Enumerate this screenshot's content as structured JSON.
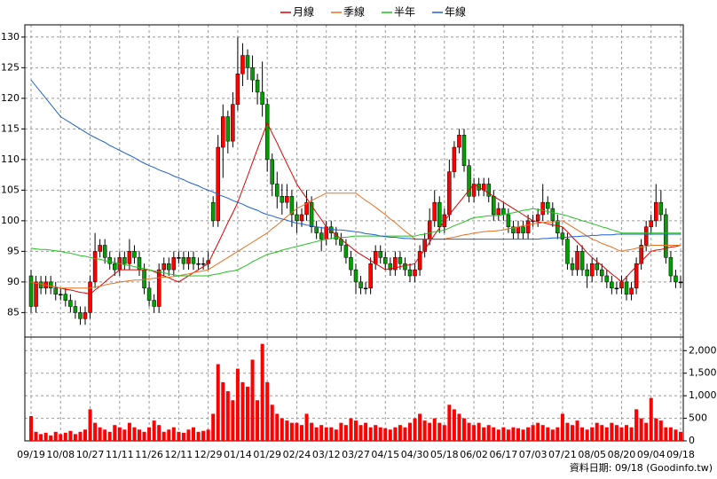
{
  "chart_data": {
    "type": "candlestick",
    "categories": [
      "09/19",
      null,
      null,
      null,
      null,
      null,
      "10/08",
      null,
      null,
      null,
      null,
      null,
      "10/27",
      null,
      null,
      null,
      null,
      null,
      "11/11",
      null,
      null,
      null,
      null,
      null,
      "11/26",
      null,
      null,
      null,
      null,
      null,
      "12/11",
      null,
      null,
      null,
      null,
      null,
      "12/29",
      null,
      null,
      null,
      null,
      null,
      "01/14",
      null,
      null,
      null,
      null,
      null,
      "01/29",
      null,
      null,
      null,
      null,
      null,
      "02/24",
      null,
      null,
      null,
      null,
      null,
      "03/12",
      null,
      null,
      null,
      null,
      null,
      "03/27",
      null,
      null,
      null,
      null,
      null,
      "04/15",
      null,
      null,
      null,
      null,
      null,
      "04/30",
      null,
      null,
      null,
      null,
      null,
      "05/18",
      null,
      null,
      null,
      null,
      null,
      "06/02",
      null,
      null,
      null,
      null,
      null,
      "06/17",
      null,
      null,
      null,
      null,
      null,
      "07/03",
      null,
      null,
      null,
      null,
      null,
      "07/21",
      null,
      null,
      null,
      null,
      null,
      "08/05",
      null,
      null,
      null,
      null,
      null,
      "08/20",
      null,
      null,
      null,
      null,
      null,
      "09/04",
      null,
      null,
      null,
      null,
      null,
      "09/18"
    ],
    "open": [
      91,
      86,
      90,
      89,
      90,
      89,
      88,
      88,
      87,
      86,
      85,
      84,
      85,
      90,
      95,
      96,
      94,
      93,
      92,
      94,
      93,
      95,
      94,
      92,
      89,
      87,
      86,
      92,
      93,
      92,
      94,
      94,
      93,
      94,
      93,
      93,
      93,
      103,
      100,
      112,
      117,
      113,
      119,
      124,
      127,
      125,
      123,
      121,
      119,
      110,
      106,
      104,
      103,
      104,
      101,
      100,
      101,
      103,
      99,
      98,
      97,
      99,
      98,
      97,
      96,
      94,
      92,
      90,
      89,
      89,
      93,
      95,
      94,
      93,
      92,
      94,
      93,
      92,
      91,
      92,
      95,
      97,
      100,
      103,
      99,
      101,
      108,
      112,
      114,
      109,
      104,
      106,
      105,
      106,
      104,
      101,
      102,
      101,
      99,
      98,
      99,
      98,
      100,
      100,
      101,
      103,
      102,
      100,
      98,
      97,
      93,
      92,
      95,
      92,
      91,
      93,
      92,
      91,
      90,
      89,
      89,
      90,
      88,
      89,
      93,
      96,
      99,
      100,
      103,
      101,
      94,
      91,
      90
    ],
    "high": [
      92,
      91,
      91,
      91,
      91,
      90,
      89,
      89,
      88,
      87,
      86,
      86,
      91,
      98,
      97,
      97,
      95,
      94,
      95,
      95,
      97,
      96,
      95,
      93,
      90,
      88,
      93,
      94,
      94,
      95,
      95,
      95,
      95,
      95,
      94,
      94,
      95,
      104,
      114,
      119,
      118,
      121,
      130,
      129,
      128,
      127,
      124,
      126,
      120,
      111,
      108,
      106,
      106,
      105,
      103,
      102,
      105,
      104,
      100,
      99,
      100,
      100,
      99,
      98,
      97,
      95,
      93,
      91,
      90,
      94,
      96,
      96,
      95,
      94,
      95,
      95,
      94,
      93,
      93,
      96,
      98,
      102,
      105,
      104,
      102,
      110,
      113,
      115,
      115,
      110,
      107,
      107,
      107,
      107,
      105,
      103,
      103,
      102,
      100,
      100,
      100,
      101,
      101,
      102,
      106,
      104,
      103,
      101,
      99,
      98,
      94,
      96,
      96,
      93,
      94,
      94,
      93,
      92,
      91,
      90,
      91,
      91,
      90,
      94,
      97,
      100,
      101,
      106,
      105,
      102,
      95,
      92,
      91
    ],
    "low": [
      85,
      85,
      88,
      88,
      88,
      87,
      87,
      86,
      85,
      84,
      83,
      83,
      84,
      89,
      94,
      93,
      92,
      91,
      91,
      92,
      92,
      93,
      91,
      88,
      86,
      85,
      85,
      91,
      91,
      91,
      93,
      92,
      92,
      92,
      92,
      92,
      92,
      99,
      99,
      107,
      111,
      112,
      118,
      122,
      123,
      121,
      119,
      117,
      108,
      104,
      102,
      101,
      102,
      99,
      98,
      99,
      100,
      98,
      97,
      95,
      96,
      97,
      96,
      95,
      93,
      91,
      88,
      88,
      88,
      88,
      92,
      93,
      92,
      91,
      91,
      92,
      91,
      90,
      90,
      91,
      94,
      96,
      99,
      98,
      98,
      100,
      107,
      111,
      108,
      103,
      103,
      104,
      104,
      103,
      100,
      100,
      100,
      98,
      97,
      97,
      97,
      97,
      99,
      99,
      100,
      101,
      99,
      97,
      96,
      92,
      91,
      91,
      91,
      89,
      90,
      91,
      90,
      89,
      88,
      88,
      88,
      87,
      87,
      88,
      92,
      95,
      98,
      99,
      100,
      93,
      90,
      89,
      89
    ],
    "close": [
      86,
      90,
      89,
      90,
      89,
      88,
      88,
      87,
      86,
      85,
      84,
      85,
      90,
      95,
      96,
      94,
      93,
      92,
      94,
      93,
      95,
      94,
      92,
      89,
      87,
      86,
      92,
      93,
      92,
      94,
      94,
      93,
      94,
      93,
      93,
      93,
      93.5,
      100,
      112,
      117,
      113,
      119,
      124,
      127,
      125,
      123,
      121,
      119,
      110,
      106,
      104,
      103,
      104,
      101,
      100,
      101,
      103,
      99,
      98,
      97,
      99,
      98,
      97,
      96,
      94,
      92,
      90,
      89,
      89,
      93,
      95,
      94,
      93,
      92,
      94,
      93,
      92,
      91,
      92,
      95,
      97,
      100,
      103,
      99,
      101,
      108,
      112,
      114,
      109,
      104,
      106,
      105,
      106,
      104,
      101,
      102,
      101,
      99,
      98,
      99,
      98,
      100,
      100,
      101,
      103,
      102,
      100,
      98,
      97,
      93,
      92,
      95,
      92,
      91,
      93,
      92,
      91,
      90,
      89,
      89,
      90,
      88,
      89,
      93,
      96,
      99,
      100,
      103,
      101,
      94,
      91,
      90,
      90
    ],
    "up_color": "#ff0000",
    "down_color": "#00a000",
    "ylim": [
      81,
      132
    ],
    "yticks": [
      85,
      90,
      95,
      100,
      105,
      110,
      115,
      120,
      125,
      130
    ],
    "grid": true,
    "legend": "top",
    "series": [
      {
        "name": "月線",
        "color": "#e00000",
        "values": [
          90,
          89.8,
          89.7,
          89.5,
          89.3,
          89.2,
          89,
          88.8,
          88.7,
          88.5,
          88.3,
          88.2,
          88,
          88.7,
          89.3,
          90,
          90.7,
          91.3,
          92,
          92,
          92,
          92,
          92,
          92,
          92,
          91.7,
          91.3,
          91,
          90.7,
          90.3,
          90,
          90.5,
          91,
          91.5,
          92,
          92.5,
          93,
          94.7,
          96.3,
          98,
          99.7,
          101.3,
          103,
          105.2,
          107.3,
          109.5,
          111.7,
          113.8,
          116,
          114.3,
          112.7,
          111,
          109.3,
          107.7,
          106,
          104.8,
          103.7,
          102.5,
          101.3,
          100.2,
          99,
          98.3,
          97.7,
          97,
          96.3,
          95.7,
          95,
          94.5,
          94,
          93.5,
          93,
          92.5,
          92,
          92.2,
          92.3,
          92.5,
          92.7,
          92.8,
          93,
          94.2,
          95.3,
          96.5,
          97.7,
          98.8,
          100,
          101,
          102,
          103,
          104,
          105,
          106,
          105.5,
          105,
          104.5,
          104,
          103.5,
          103,
          102.5,
          102,
          101.5,
          101,
          100.5,
          100,
          99.8,
          99.7,
          99.5,
          99.3,
          99.2,
          99,
          98.2,
          97.3,
          96.5,
          95.7,
          94.8,
          94,
          93.3,
          92.7,
          92,
          91.3,
          90.7,
          90,
          90.8,
          91.7,
          92.5,
          93.3,
          94.2,
          95,
          95.2,
          95.3,
          95.5,
          95.7,
          95.8,
          96
        ]
      },
      {
        "name": "季線",
        "color": "#e87020",
        "values": [
          90,
          89.8,
          89.7,
          89.5,
          89.3,
          89.2,
          89,
          89,
          89,
          89,
          89,
          89,
          89,
          89.2,
          89.3,
          89.5,
          89.7,
          89.8,
          90,
          90.1,
          90.2,
          90.3,
          90.3,
          90.4,
          90.5,
          90.6,
          90.7,
          90.8,
          90.8,
          90.9,
          91,
          91.2,
          91.3,
          91.5,
          91.7,
          91.8,
          92,
          92.5,
          93,
          93.5,
          94,
          94.5,
          95,
          95.5,
          96,
          96.5,
          97,
          97.5,
          98,
          98.7,
          99.3,
          100,
          100.7,
          101.3,
          102,
          102.4,
          102.8,
          103.3,
          103.7,
          104.1,
          104.5,
          104.5,
          104.5,
          104.5,
          104.5,
          104.5,
          104.5,
          103.9,
          103.3,
          102.8,
          102.2,
          101.6,
          101,
          100.3,
          99.7,
          99,
          98.3,
          97.7,
          97,
          97,
          97,
          97,
          97,
          97,
          97,
          97.2,
          97.3,
          97.5,
          97.7,
          97.8,
          98,
          98.1,
          98.2,
          98.3,
          98.3,
          98.4,
          98.5,
          98.7,
          98.8,
          99,
          99.2,
          99.3,
          99.5,
          99.6,
          99.7,
          99.8,
          99.8,
          99.9,
          100,
          99.5,
          99,
          98.5,
          98,
          97.5,
          97,
          96.7,
          96.3,
          96,
          95.7,
          95.3,
          95,
          95.2,
          95.3,
          95.5,
          95.7,
          95.8,
          96,
          96,
          96,
          96,
          96,
          96,
          96
        ]
      },
      {
        "name": "半年",
        "color": "#20c020",
        "values": [
          95.5,
          95.4,
          95.3,
          95.3,
          95.2,
          95.1,
          95,
          94.8,
          94.7,
          94.5,
          94.3,
          94.2,
          94,
          93.8,
          93.7,
          93.5,
          93.3,
          93.2,
          93,
          92.8,
          92.7,
          92.5,
          92.3,
          92.2,
          92,
          91.8,
          91.7,
          91.5,
          91.3,
          91.2,
          91,
          91,
          91,
          91,
          91,
          91,
          91,
          91.2,
          91.3,
          91.5,
          91.7,
          91.8,
          92,
          92.4,
          92.8,
          93.3,
          93.7,
          94.1,
          94.5,
          94.7,
          94.9,
          95.2,
          95.4,
          95.6,
          95.8,
          96,
          96.2,
          96.4,
          96.6,
          96.8,
          97,
          97.1,
          97.2,
          97.3,
          97.3,
          97.4,
          97.5,
          97.5,
          97.5,
          97.5,
          97.5,
          97.5,
          97.5,
          97.5,
          97.5,
          97.5,
          97.5,
          97.5,
          97.5,
          97.7,
          97.8,
          98,
          98.2,
          98.3,
          98.5,
          98.8,
          99.2,
          99.5,
          99.8,
          100.2,
          100.5,
          100.6,
          100.7,
          100.8,
          100.8,
          100.9,
          101,
          101.2,
          101.3,
          101.5,
          101.7,
          101.8,
          102,
          101.8,
          101.7,
          101.5,
          101.3,
          101.2,
          101,
          100.8,
          100.5,
          100.3,
          100,
          99.8,
          99.5,
          99.3,
          99,
          98.8,
          98.5,
          98.3,
          98,
          98,
          98,
          98,
          98,
          98,
          98,
          98,
          98,
          98,
          98,
          98,
          98
        ]
      },
      {
        "name": "年線",
        "color": "#2060d0",
        "values": [
          123,
          122,
          121,
          120,
          119,
          118,
          117,
          116.5,
          116,
          115.5,
          115,
          114.5,
          114,
          113.6,
          113.2,
          112.8,
          112.3,
          111.9,
          111.5,
          111.1,
          110.7,
          110.3,
          109.8,
          109.4,
          109,
          108.7,
          108.3,
          108,
          107.7,
          107.3,
          107,
          106.7,
          106.3,
          106,
          105.7,
          105.3,
          105,
          104.7,
          104.3,
          104,
          103.7,
          103.3,
          103,
          102.7,
          102.3,
          102,
          101.7,
          101.3,
          101,
          100.8,
          100.5,
          100.3,
          100.1,
          99.8,
          99.6,
          99.5,
          99.3,
          99.2,
          99,
          98.9,
          98.7,
          98.6,
          98.5,
          98.5,
          98.4,
          98.3,
          98.2,
          98.1,
          97.9,
          97.8,
          97.7,
          97.5,
          97.4,
          97.3,
          97.3,
          97.2,
          97.1,
          97.1,
          97,
          97,
          97,
          97,
          97,
          97,
          97,
          97,
          97,
          97,
          97,
          97,
          97,
          97,
          97,
          97,
          97,
          97,
          97,
          97,
          97,
          97,
          97,
          97,
          97,
          97,
          97.1,
          97.1,
          97.2,
          97.2,
          97.3,
          97.3,
          97.4,
          97.4,
          97.5,
          97.5,
          97.6,
          97.6,
          97.7,
          97.7,
          97.7,
          97.8,
          97.8,
          97.8,
          97.8,
          97.8,
          97.8,
          97.8,
          97.8,
          97.8,
          97.8,
          97.8,
          97.8,
          97.8,
          97.8
        ]
      }
    ],
    "volume": {
      "color": "#ff0000",
      "ylim": [
        0,
        2300
      ],
      "yticks": [
        0,
        500,
        {
          "value": 1000,
          "label": "1,000"
        },
        {
          "value": 1500,
          "label": "1,500"
        },
        {
          "value": 2000,
          "label": "2,000"
        }
      ],
      "values": [
        550,
        200,
        150,
        180,
        120,
        200,
        150,
        180,
        220,
        150,
        200,
        250,
        700,
        400,
        300,
        250,
        200,
        350,
        300,
        250,
        400,
        300,
        250,
        200,
        300,
        450,
        350,
        200,
        250,
        300,
        200,
        180,
        250,
        300,
        200,
        220,
        250,
        600,
        1700,
        1300,
        1100,
        900,
        1600,
        1300,
        1200,
        1800,
        900,
        2150,
        1300,
        800,
        600,
        500,
        450,
        400,
        400,
        350,
        600,
        400,
        300,
        350,
        300,
        300,
        250,
        400,
        350,
        500,
        450,
        350,
        400,
        300,
        350,
        300,
        280,
        250,
        300,
        350,
        300,
        400,
        500,
        600,
        450,
        400,
        500,
        400,
        350,
        800,
        700,
        600,
        500,
        400,
        350,
        400,
        300,
        350,
        300,
        250,
        300,
        250,
        300,
        280,
        250,
        300,
        350,
        400,
        350,
        300,
        250,
        300,
        600,
        400,
        350,
        450,
        300,
        250,
        300,
        400,
        350,
        300,
        400,
        350,
        300,
        350,
        300,
        700,
        500,
        400,
        950,
        500,
        450,
        300,
        300,
        250,
        200
      ]
    },
    "footer": "資料日期: 09/18 (Goodinfo.tw)"
  }
}
